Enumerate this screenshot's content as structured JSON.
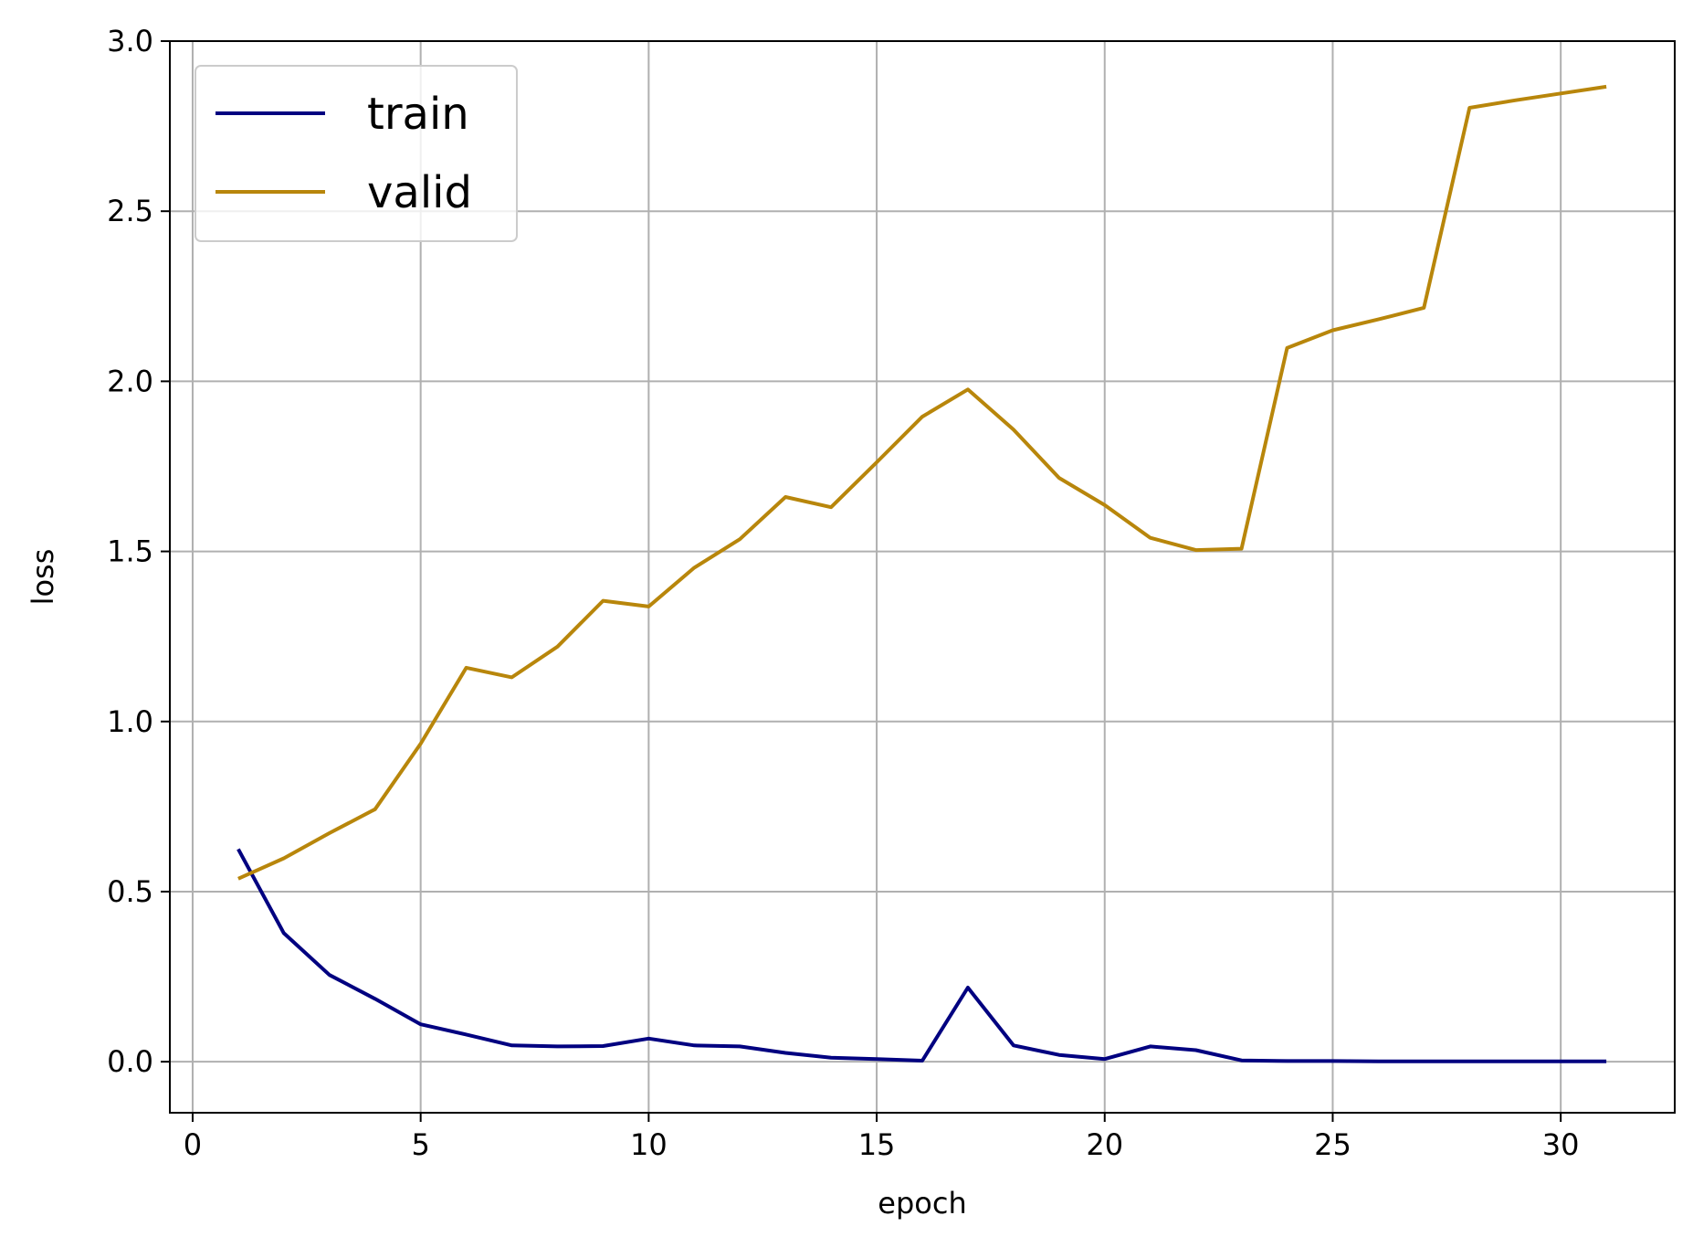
{
  "chart_data": {
    "type": "line",
    "title": "",
    "xlabel": "epoch",
    "ylabel": "loss",
    "xlim": [
      -0.5,
      32.5
    ],
    "ylim": [
      -0.15,
      3.0
    ],
    "xticks": [
      0,
      5,
      10,
      15,
      20,
      25,
      30
    ],
    "yticks": [
      0.0,
      0.5,
      1.0,
      1.5,
      2.0,
      2.5,
      3.0
    ],
    "xtick_labels": [
      "0",
      "5",
      "10",
      "15",
      "20",
      "25",
      "30"
    ],
    "ytick_labels": [
      "0.0",
      "0.5",
      "1.0",
      "1.5",
      "2.0",
      "2.5",
      "3.0"
    ],
    "grid": true,
    "legend_position": "top-left",
    "x": [
      1,
      2,
      3,
      4,
      5,
      6,
      7,
      8,
      9,
      10,
      11,
      12,
      13,
      14,
      15,
      16,
      17,
      18,
      19,
      20,
      21,
      22,
      23,
      24,
      25,
      26,
      27,
      28,
      29,
      30,
      31
    ],
    "series": [
      {
        "name": "train",
        "color": "#000080",
        "values": [
          0.625,
          0.378,
          0.255,
          0.185,
          0.11,
          0.08,
          0.048,
          0.045,
          0.046,
          0.068,
          0.048,
          0.045,
          0.026,
          0.012,
          0.008,
          0.003,
          0.218,
          0.048,
          0.02,
          0.008,
          0.045,
          0.034,
          0.004,
          0.002,
          0.002,
          0.001,
          0.001,
          0.001,
          0.001,
          0.001,
          0.001
        ]
      },
      {
        "name": "valid",
        "color": "#B8860B",
        "values": [
          0.538,
          0.598,
          0.672,
          0.742,
          0.935,
          1.158,
          1.13,
          1.22,
          1.355,
          1.338,
          1.452,
          1.536,
          1.66,
          1.63,
          1.762,
          1.896,
          1.976,
          1.858,
          1.716,
          1.636,
          1.54,
          1.504,
          1.508,
          2.098,
          2.15,
          2.182,
          2.216,
          2.804,
          2.826,
          2.846,
          2.866
        ]
      }
    ]
  }
}
